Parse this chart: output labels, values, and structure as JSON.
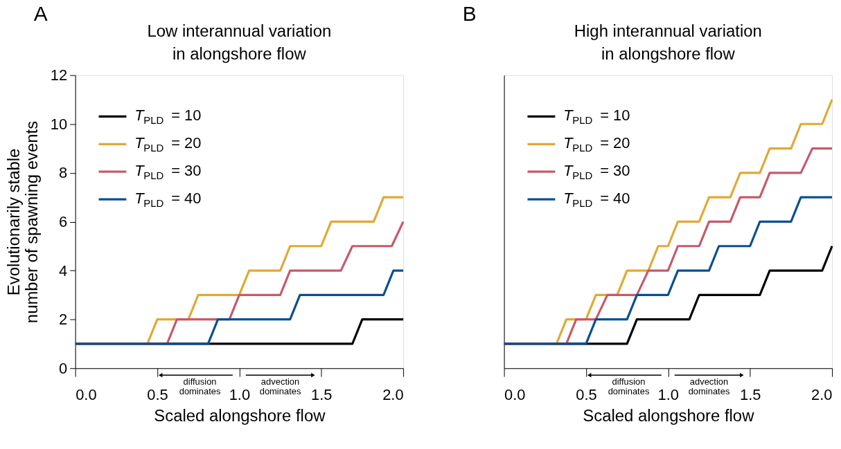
{
  "chart_data": [
    {
      "type": "line",
      "title": "Low interannual variation\nin alongshore flow",
      "xlabel": "Scaled alongshore flow",
      "ylabel": "Evolutionarily stable\nnumber of spawning events",
      "annotations": [
        "A",
        "diffusion dominates",
        "advection dominates"
      ],
      "xlim": [
        0,
        2
      ],
      "xticks": [
        {
          "value": 0,
          "label": "0.0"
        },
        {
          "value": 0.5,
          "label": "0.5"
        },
        {
          "value": 1,
          "label": "1.0"
        },
        {
          "value": 1.5,
          "label": "1.5"
        },
        {
          "value": 2,
          "label": "2.0"
        }
      ],
      "ylim": [
        0,
        12
      ],
      "yticks": [
        0,
        2,
        4,
        6,
        8,
        10,
        12
      ],
      "grid": false,
      "legend": "top left",
      "line_style": "solid",
      "marker": "none",
      "series": [
        {
          "name": "T$_{PLD}$ = 10",
          "color": "#000000",
          "x": [
            0,
            1.69,
            1.75,
            2.0
          ],
          "values": [
            1,
            1,
            2,
            2
          ]
        },
        {
          "name": "T$_{PLD}$ = 20",
          "color": "#e0a935",
          "x": [
            0,
            0.44,
            0.5,
            0.69,
            0.75,
            1.0,
            1.06,
            1.25,
            1.31,
            1.5,
            1.56,
            1.82,
            1.88,
            2.0
          ],
          "values": [
            1,
            1,
            2,
            2,
            3,
            3,
            4,
            4,
            5,
            5,
            6,
            6,
            7,
            7
          ]
        },
        {
          "name": "T$_{PLD}$ = 30",
          "color": "#c55a6a",
          "x": [
            0,
            0.56,
            0.62,
            0.94,
            1.0,
            1.25,
            1.31,
            1.62,
            1.69,
            1.93,
            2.0
          ],
          "values": [
            1,
            1,
            2,
            2,
            3,
            3,
            4,
            4,
            5,
            5,
            6
          ]
        },
        {
          "name": "T$_{PLD}$ = 40",
          "color": "#0a4f8f",
          "x": [
            0,
            0.81,
            0.87,
            1.31,
            1.37,
            1.88,
            1.94,
            2.0
          ],
          "values": [
            1,
            1,
            2,
            2,
            3,
            3,
            4,
            4
          ]
        }
      ]
    },
    {
      "type": "line",
      "title": "High interannual variation\nin alongshore flow",
      "xlabel": "Scaled alongshore flow",
      "annotations": [
        "B",
        "diffusion dominates",
        "advection dominates"
      ],
      "xlim": [
        0,
        2
      ],
      "xticks": [
        {
          "value": 0,
          "label": "0.0"
        },
        {
          "value": 0.5,
          "label": "0.5"
        },
        {
          "value": 1,
          "label": "1.0"
        },
        {
          "value": 1.5,
          "label": "1.5"
        },
        {
          "value": 2,
          "label": "2.0"
        }
      ],
      "ylim": [
        0,
        12
      ],
      "tick_labels": "x",
      "grid": false,
      "legend": "top left",
      "line_style": "solid",
      "marker": "none",
      "series": [
        {
          "name": "T$_{PLD}$ = 10",
          "color": "#000000",
          "x": [
            0,
            0.75,
            0.81,
            1.13,
            1.19,
            1.56,
            1.62,
            1.94,
            2.0
          ],
          "values": [
            1,
            1,
            2,
            2,
            3,
            3,
            4,
            4,
            5
          ]
        },
        {
          "name": "T$_{PLD}$ = 20",
          "color": "#e0a935",
          "x": [
            0,
            0.32,
            0.38,
            0.5,
            0.56,
            0.69,
            0.75,
            0.88,
            0.94,
            1.0,
            1.06,
            1.19,
            1.25,
            1.38,
            1.44,
            1.56,
            1.62,
            1.75,
            1.81,
            1.94,
            2.0
          ],
          "values": [
            1,
            1,
            2,
            2,
            3,
            3,
            4,
            4,
            5,
            5,
            6,
            6,
            7,
            7,
            8,
            8,
            9,
            9,
            10,
            10,
            11
          ]
        },
        {
          "name": "T$_{PLD}$ = 30",
          "color": "#c55a6a",
          "x": [
            0,
            0.38,
            0.44,
            0.56,
            0.63,
            0.81,
            0.88,
            1.0,
            1.06,
            1.19,
            1.25,
            1.38,
            1.44,
            1.56,
            1.62,
            1.81,
            1.88,
            2.0
          ],
          "values": [
            1,
            1,
            2,
            2,
            3,
            3,
            4,
            4,
            5,
            5,
            6,
            6,
            7,
            7,
            8,
            8,
            9,
            9
          ]
        },
        {
          "name": "T$_{PLD}$ = 40",
          "color": "#0a4f8f",
          "x": [
            0,
            0.5,
            0.56,
            0.75,
            0.81,
            1.0,
            1.06,
            1.25,
            1.31,
            1.5,
            1.56,
            1.75,
            1.81,
            2.0
          ],
          "values": [
            1,
            1,
            2,
            2,
            3,
            3,
            4,
            4,
            5,
            5,
            6,
            6,
            7,
            7
          ]
        }
      ]
    }
  ]
}
